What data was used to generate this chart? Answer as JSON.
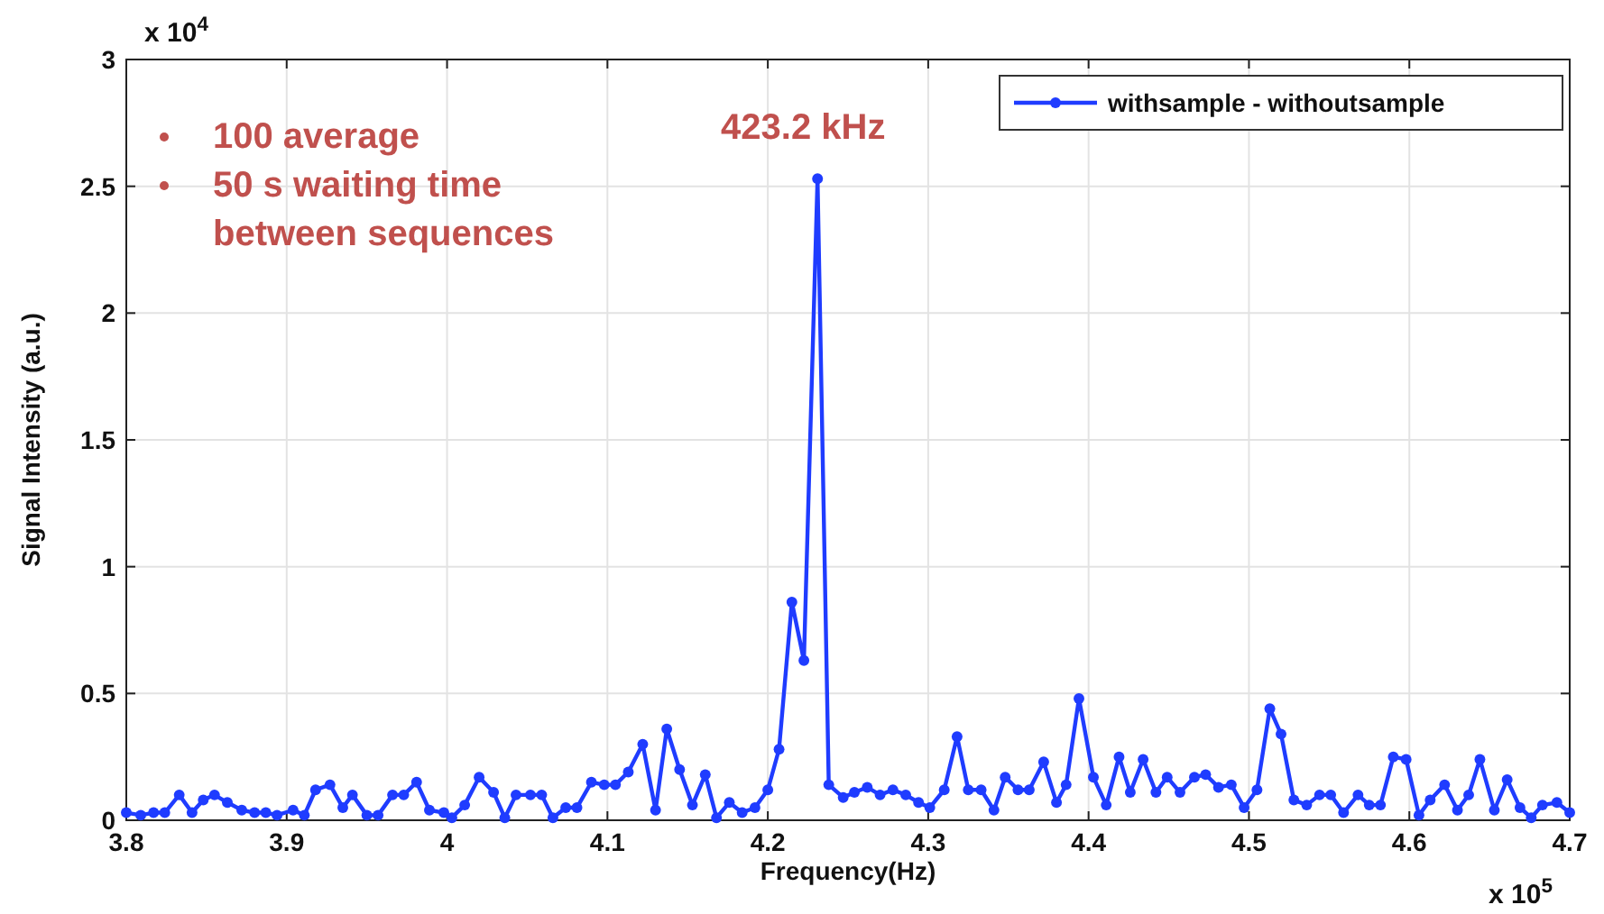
{
  "chart_data": {
    "type": "line",
    "xlabel": "Frequency(Hz)",
    "ylabel": "Signal Intensity (a.u.)",
    "xlim": [
      3.8,
      4.7
    ],
    "xticks": [
      3.8,
      3.9,
      4,
      4.1,
      4.2,
      4.3,
      4.4,
      4.5,
      4.6,
      4.7
    ],
    "ylim": [
      0,
      3
    ],
    "yticks": [
      0,
      0.5,
      1,
      1.5,
      2,
      2.5,
      3
    ],
    "grid": true,
    "legend": "top right",
    "marker": "circle",
    "line_style": "solid",
    "annotations": [
      "100 average",
      "50 s waiting time between sequences",
      {
        "text": "423.2 kHz",
        "x": 4.231,
        "y": 2.53
      },
      "x 10$^{4}$",
      "x 10$^{5}$"
    ],
    "series": [
      {
        "name": "withsample - withoutsample",
        "color": "#1f3cff",
        "x": [
          3.8,
          3.809,
          3.817,
          3.824,
          3.833,
          3.841,
          3.848,
          3.855,
          3.863,
          3.872,
          3.88,
          3.887,
          3.894,
          3.904,
          3.911,
          3.918,
          3.927,
          3.935,
          3.941,
          3.95,
          3.957,
          3.966,
          3.973,
          3.981,
          3.989,
          3.998,
          4.003,
          4.011,
          4.02,
          4.029,
          4.036,
          4.043,
          4.052,
          4.059,
          4.066,
          4.074,
          4.081,
          4.09,
          4.098,
          4.105,
          4.113,
          4.122,
          4.13,
          4.137,
          4.145,
          4.153,
          4.161,
          4.168,
          4.176,
          4.184,
          4.192,
          4.2,
          4.207,
          4.215,
          4.2225,
          4.231,
          4.238,
          4.247,
          4.254,
          4.262,
          4.27,
          4.278,
          4.286,
          4.294,
          4.301,
          4.31,
          4.318,
          4.325,
          4.333,
          4.341,
          4.348,
          4.356,
          4.363,
          4.372,
          4.38,
          4.386,
          4.394,
          4.403,
          4.411,
          4.419,
          4.426,
          4.434,
          4.442,
          4.449,
          4.457,
          4.466,
          4.473,
          4.481,
          4.489,
          4.497,
          4.505,
          4.513,
          4.52,
          4.528,
          4.536,
          4.544,
          4.551,
          4.559,
          4.568,
          4.575,
          4.582,
          4.59,
          4.598,
          4.606,
          4.613,
          4.622,
          4.63,
          4.637,
          4.644,
          4.653,
          4.661,
          4.669,
          4.676,
          4.683,
          4.692,
          4.7
        ],
        "values": [
          0.03,
          0.02,
          0.03,
          0.03,
          0.1,
          0.03,
          0.08,
          0.1,
          0.07,
          0.04,
          0.03,
          0.03,
          0.02,
          0.04,
          0.02,
          0.12,
          0.14,
          0.05,
          0.1,
          0.02,
          0.02,
          0.1,
          0.1,
          0.15,
          0.04,
          0.03,
          0.01,
          0.06,
          0.17,
          0.11,
          0.01,
          0.1,
          0.1,
          0.1,
          0.01,
          0.05,
          0.05,
          0.15,
          0.14,
          0.14,
          0.19,
          0.3,
          0.04,
          0.36,
          0.2,
          0.06,
          0.18,
          0.01,
          0.07,
          0.03,
          0.05,
          0.12,
          0.28,
          0.86,
          0.63,
          2.53,
          0.14,
          0.09,
          0.11,
          0.13,
          0.1,
          0.12,
          0.1,
          0.07,
          0.05,
          0.12,
          0.33,
          0.12,
          0.12,
          0.04,
          0.17,
          0.12,
          0.12,
          0.23,
          0.07,
          0.14,
          0.48,
          0.17,
          0.06,
          0.25,
          0.11,
          0.24,
          0.11,
          0.17,
          0.11,
          0.17,
          0.18,
          0.13,
          0.14,
          0.05,
          0.12,
          0.44,
          0.34,
          0.08,
          0.06,
          0.1,
          0.1,
          0.03,
          0.1,
          0.06,
          0.06,
          0.25,
          0.24,
          0.02,
          0.08,
          0.14,
          0.04,
          0.1,
          0.24,
          0.04,
          0.16,
          0.05,
          0.01,
          0.06,
          0.07,
          0.03
        ]
      }
    ]
  }
}
